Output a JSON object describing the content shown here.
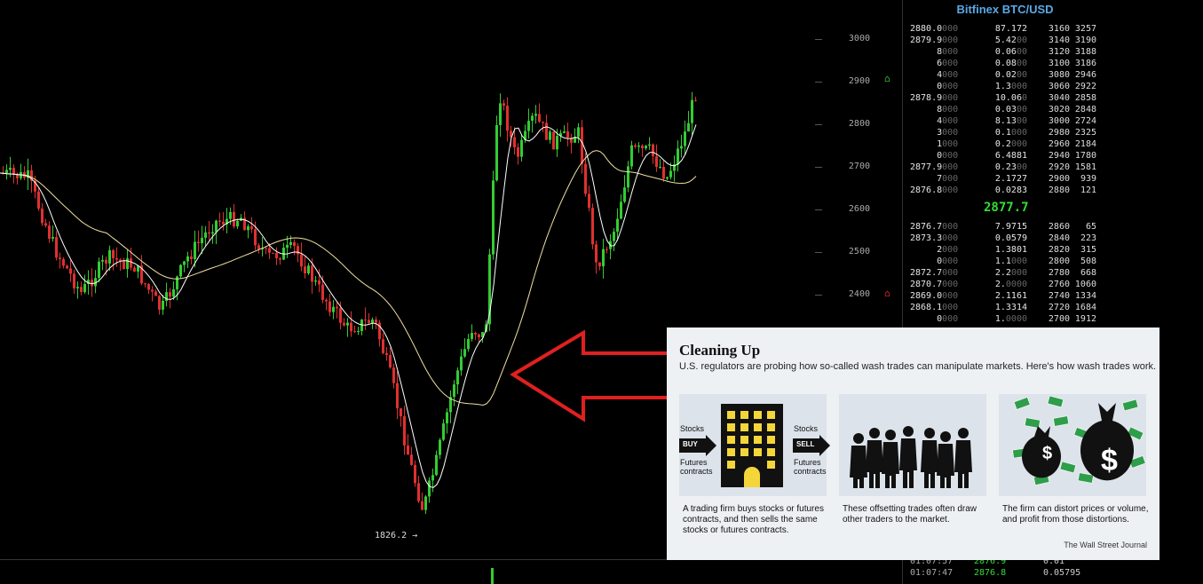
{
  "chart": {
    "axis_ticks": [
      "3000",
      "2900",
      "2800",
      "2700",
      "2600",
      "2500",
      "2400"
    ],
    "low_label": "1826.2",
    "low_arrow": "→",
    "alarm_icon_high": "bell-icon",
    "alarm_icon_low": "bell-icon",
    "colors": {
      "up": "#33cc33",
      "down": "#e03030",
      "ma_fast": "#ffffff",
      "ma_slow": "#f0e0a0",
      "arrow": "#e02020"
    }
  },
  "orderbook": {
    "title": "Bitfinex BTC/USD",
    "asks": [
      {
        "p": "2880.0",
        "pd": "000",
        "s": "87.172",
        "sd": "",
        "t1": "3160",
        "t2": "3257"
      },
      {
        "p": "2879.9",
        "pd": "000",
        "s": "5.4200",
        "sd": "",
        "t1": "3140",
        "t2": "3190"
      },
      {
        "p": "8",
        "pd": "000",
        "s": "0.0600",
        "sd": "",
        "t1": "3120",
        "t2": "3188"
      },
      {
        "p": "6",
        "pd": "000",
        "s": "0.0800",
        "sd": "",
        "t1": "3100",
        "t2": "3186"
      },
      {
        "p": "4",
        "pd": "000",
        "s": "0.0200",
        "sd": "",
        "t1": "3080",
        "t2": "2946"
      },
      {
        "p": "0",
        "pd": "000",
        "s": "1.3000",
        "sd": "",
        "t1": "3060",
        "t2": "2922"
      },
      {
        "p": "2878.9",
        "pd": "000",
        "s": "10.060",
        "sd": "",
        "t1": "3040",
        "t2": "2858"
      },
      {
        "p": "8",
        "pd": "000",
        "s": "0.0300",
        "sd": "",
        "t1": "3020",
        "t2": "2848"
      },
      {
        "p": "4",
        "pd": "000",
        "s": "8.1300",
        "sd": "",
        "t1": "3000",
        "t2": "2724"
      },
      {
        "p": "3",
        "pd": "000",
        "s": "0.1000",
        "sd": "",
        "t1": "2980",
        "t2": "2325"
      },
      {
        "p": "1",
        "pd": "000",
        "s": "0.2000",
        "sd": "",
        "t1": "2960",
        "t2": "2184"
      },
      {
        "p": "0",
        "pd": "000",
        "s": "6.4881",
        "sd": "",
        "t1": "2940",
        "t2": "1780"
      },
      {
        "p": "2877.9",
        "pd": "000",
        "s": "0.2300",
        "sd": "",
        "t1": "2920",
        "t2": "1581"
      },
      {
        "p": "7",
        "pd": "000",
        "s": "2.1727",
        "sd": "",
        "t1": "2900",
        "t2": "939"
      },
      {
        "p": "2876.8",
        "pd": "000",
        "s": "0.0283",
        "sd": "",
        "t1": "2880",
        "t2": "121"
      }
    ],
    "mid_price": "2877.7",
    "bids": [
      {
        "p": "2876.7",
        "pd": "000",
        "s": "7.9715",
        "t1": "2860",
        "t2": "65"
      },
      {
        "p": "2873.3",
        "pd": "000",
        "s": "0.0579",
        "t1": "2840",
        "t2": "223"
      },
      {
        "p": "2",
        "pd": "000",
        "s": "1.3801",
        "t1": "2820",
        "t2": "315"
      },
      {
        "p": "0",
        "pd": "000",
        "s": "1.1000",
        "t1": "2800",
        "t2": "508"
      },
      {
        "p": "2872.7",
        "pd": "000",
        "s": "2.2000",
        "t1": "2780",
        "t2": "668"
      },
      {
        "p": "2870.7",
        "pd": "000",
        "s": "2.0000",
        "t1": "2760",
        "t2": "1060"
      },
      {
        "p": "2869.0",
        "pd": "000",
        "s": "2.1161",
        "t1": "2740",
        "t2": "1334"
      },
      {
        "p": "2868.1",
        "pd": "000",
        "s": "1.3314",
        "t1": "2720",
        "t2": "1684"
      },
      {
        "p": "0",
        "pd": "000",
        "s": "1.0000",
        "t1": "2700",
        "t2": "1912"
      }
    ],
    "trades": [
      {
        "time": "01:07:57",
        "price": "2876.9",
        "size": "0.01"
      },
      {
        "time": "01:07:47",
        "price": "2876.8",
        "size": "0.05795"
      }
    ]
  },
  "infographic": {
    "title": "Cleaning Up",
    "subtitle": "U.S. regulators are probing how so-called wash trades can manipulate markets. Here's how wash trades work.",
    "panel1": {
      "left_top": "Stocks",
      "buy": "BUY",
      "left_bottom": "Futures contracts",
      "right_top": "Stocks",
      "sell": "SELL",
      "right_bottom": "Futures contracts"
    },
    "captions": [
      "A trading firm buys stocks or futures contracts, and then sells the same stocks or futures contracts.",
      "These offsetting trades often draw other traders to the market.",
      "The firm can distort prices or volume, and profit from those distortions."
    ],
    "source": "The Wall Street Journal",
    "dollar_sign": "$"
  }
}
